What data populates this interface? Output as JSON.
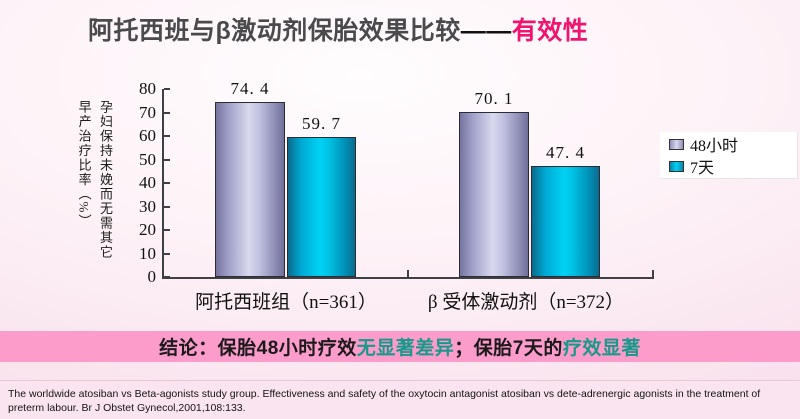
{
  "title": {
    "segments": [
      {
        "text": "阿托西班与β激动剂保胎效果比较",
        "color": "#4a4a4d"
      },
      {
        "text": "——",
        "color": "#111111"
      },
      {
        "text": "有效性",
        "color": "#f0146e"
      }
    ]
  },
  "chart_data": {
    "type": "bar",
    "title": "",
    "xlabel": "",
    "ylabel": "孕妇保持未娩而无需其它早产治疗比率（%）",
    "ylim": [
      0,
      80
    ],
    "ytick_step": 10,
    "yticks": [
      80,
      70,
      60,
      50,
      40,
      30,
      20,
      10,
      0
    ],
    "grid": false,
    "legend_position": "right",
    "categories": [
      "阿托西班组（n=361）",
      "β 受体激动剂（n=372）"
    ],
    "series": [
      {
        "name": "48小时",
        "values": [
          74.4,
          70.1
        ],
        "value_labels": [
          "74. 4",
          "70. 1"
        ],
        "color": "#b8b8de"
      },
      {
        "name": "7天",
        "values": [
          59.7,
          47.4
        ],
        "value_labels": [
          "59. 7",
          "47. 4"
        ],
        "color": "#00c8ec"
      }
    ]
  },
  "conclusion": {
    "segments": [
      {
        "text": "结论：保胎48小时疗效",
        "color": "#1a1a1a"
      },
      {
        "text": "无显著差异",
        "color": "#18998b"
      },
      {
        "text": "；保胎7天的",
        "color": "#1a1a1a"
      },
      {
        "text": "疗效显著",
        "color": "#18998b"
      }
    ]
  },
  "footer": {
    "citation": "The worldwide atosiban vs Beta-agonists study group. Effectiveness and safety of the oxytocin antagonist atosiban vs dete-adrenergic agonists in the treatment of preterm labour. Br J Obstet Gynecol,2001,108:133."
  },
  "colors": {
    "band_pink": "#fc9ccb",
    "title_highlight": "#f0146e",
    "teal_emphasis": "#18998b",
    "axis": "#3f3f46",
    "bar_48h": "#b8b8de",
    "bar_7d": "#00c8ec"
  }
}
